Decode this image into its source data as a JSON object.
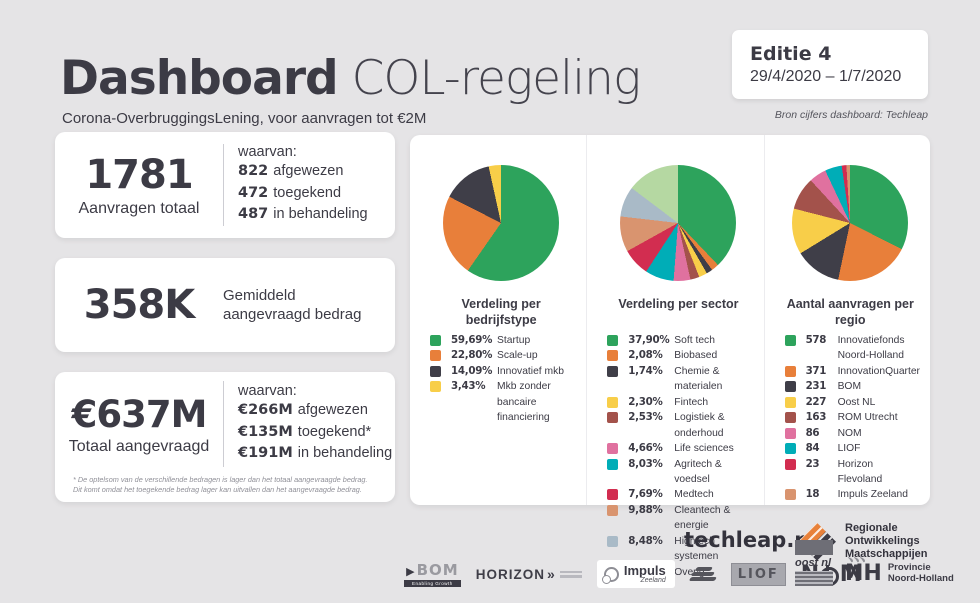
{
  "colors": {
    "background": "#e5e4e6",
    "text_dark": "#3c3b45",
    "card_white": "#ffffff",
    "green": "#2da35c",
    "orange": "#e87f3a",
    "dark_gray": "#3f3e48",
    "yellow": "#f8ce49",
    "brown_red": "#a3524b",
    "pink": "#e0719f",
    "teal": "#00adb7",
    "crimson": "#d22d50",
    "salmon": "#d9946f",
    "gray_blue": "#a9bac7",
    "light_green": "#b5d8a2",
    "rom_orange": "#e8813a"
  },
  "header": {
    "title_bold": "Dashboard",
    "title_light": " COL-regeling",
    "subtitle": "Corona-OverbruggingsLening, voor aanvragen tot €2M",
    "edition_label": "Editie 4",
    "edition_dates": "29/4/2020 – 1/7/2020",
    "source_note": "Bron cijfers dashboard: Techleap"
  },
  "stats": {
    "card1": {
      "value": "1781",
      "label": "Aanvragen totaal",
      "breakdown_title": "waarvan:",
      "breakdown": [
        {
          "value": "822",
          "label": "afgewezen"
        },
        {
          "value": "472",
          "label": "toegekend"
        },
        {
          "value": "487",
          "label": "in behandeling"
        }
      ]
    },
    "card2": {
      "value": "358K",
      "label_line1": "Gemiddeld",
      "label_line2": "aangevraagd bedrag"
    },
    "card3": {
      "value": "€637M",
      "label": "Totaal aangevraagd",
      "breakdown_title": "waarvan:",
      "breakdown": [
        {
          "value": "€266M",
          "label": "afgewezen"
        },
        {
          "value": "€135M",
          "label": "toegekend*"
        },
        {
          "value": "€191M",
          "label": "in behandeling"
        }
      ],
      "footnote_line1": "* De optelsom van de verschillende bedragen is lager dan het totaal aangevraagde bedrag.",
      "footnote_line2": "Dit komt omdat het toegekende bedrag lager kan uitvallen dan het aangevraagde bedrag."
    }
  },
  "chart_data": [
    {
      "type": "pie",
      "title": "Verdeling per bedrijfstype",
      "labels": [
        "Startup",
        "Scale-up",
        "Innovatief mkb",
        "Mkb zonder bancaire financiering"
      ],
      "values": [
        59.69,
        22.8,
        14.09,
        3.43
      ],
      "display": [
        "59,69%",
        "22,80%",
        "14,09%",
        "3,43%"
      ],
      "colors": [
        "#2da35c",
        "#e87f3a",
        "#3f3e48",
        "#f8ce49"
      ],
      "start_angle_deg": 0,
      "legend_position": "below"
    },
    {
      "type": "pie",
      "title": "Verdeling per sector",
      "labels": [
        "Soft tech",
        "Biobased",
        "Chemie & materialen",
        "Fintech",
        "Logistiek & onderhoud",
        "Life sciences",
        "Agritech & voedsel",
        "Medtech",
        "Cleantech & energie",
        "Hightech systemen",
        "Overig"
      ],
      "values": [
        37.9,
        2.08,
        1.74,
        2.3,
        2.53,
        4.66,
        8.03,
        7.69,
        9.88,
        8.48,
        14.71
      ],
      "display": [
        "37,90%",
        "2,08%",
        "1,74%",
        "2,30%",
        "2,53%",
        "4,66%",
        "8,03%",
        "7,69%",
        "9,88%",
        "8,48%",
        "14,71%"
      ],
      "colors": [
        "#2da35c",
        "#e87f3a",
        "#3f3e48",
        "#f8ce49",
        "#a3524b",
        "#e0719f",
        "#00adb7",
        "#d22d50",
        "#d9946f",
        "#a9bac7",
        "#b5d8a2"
      ],
      "start_angle_deg": 0,
      "legend_position": "below"
    },
    {
      "type": "pie",
      "title": "Aantal aanvragen per regio",
      "labels": [
        "Innovatiefonds Noord-Holland",
        "InnovationQuarter",
        "BOM",
        "Oost NL",
        "ROM Utrecht",
        "NOM",
        "LIOF",
        "Horizon Flevoland",
        "Impuls Zeeland"
      ],
      "values": [
        578,
        371,
        231,
        227,
        163,
        86,
        84,
        23,
        18
      ],
      "display": [
        "578",
        "371",
        "231",
        "227",
        "163",
        "86",
        "84",
        "23",
        "18"
      ],
      "colors": [
        "#2da35c",
        "#e87f3a",
        "#3f3e48",
        "#f8ce49",
        "#a3524b",
        "#e0719f",
        "#00adb7",
        "#d22d50",
        "#d9946f"
      ],
      "start_angle_deg": 0,
      "legend_position": "below"
    }
  ],
  "footer": {
    "techleap_label": "techleap.nl",
    "rom_logo_lines": [
      "Regionale",
      "Ontwikkelings",
      "Maatschappijen"
    ],
    "logos": {
      "bom": "BOM",
      "bom_sub": "Enabling Growth",
      "horizon": "HORIZON",
      "horizon_chevrons": "»",
      "impuls": "Impuls",
      "impuls_sub": "Zeeland",
      "liof": "LIOF",
      "nom_n": "N",
      "nom_m": "M",
      "oost": "oost nl",
      "nh": "NH",
      "nh_line1": "Provincie",
      "nh_line2": "Noord-Holland"
    }
  }
}
